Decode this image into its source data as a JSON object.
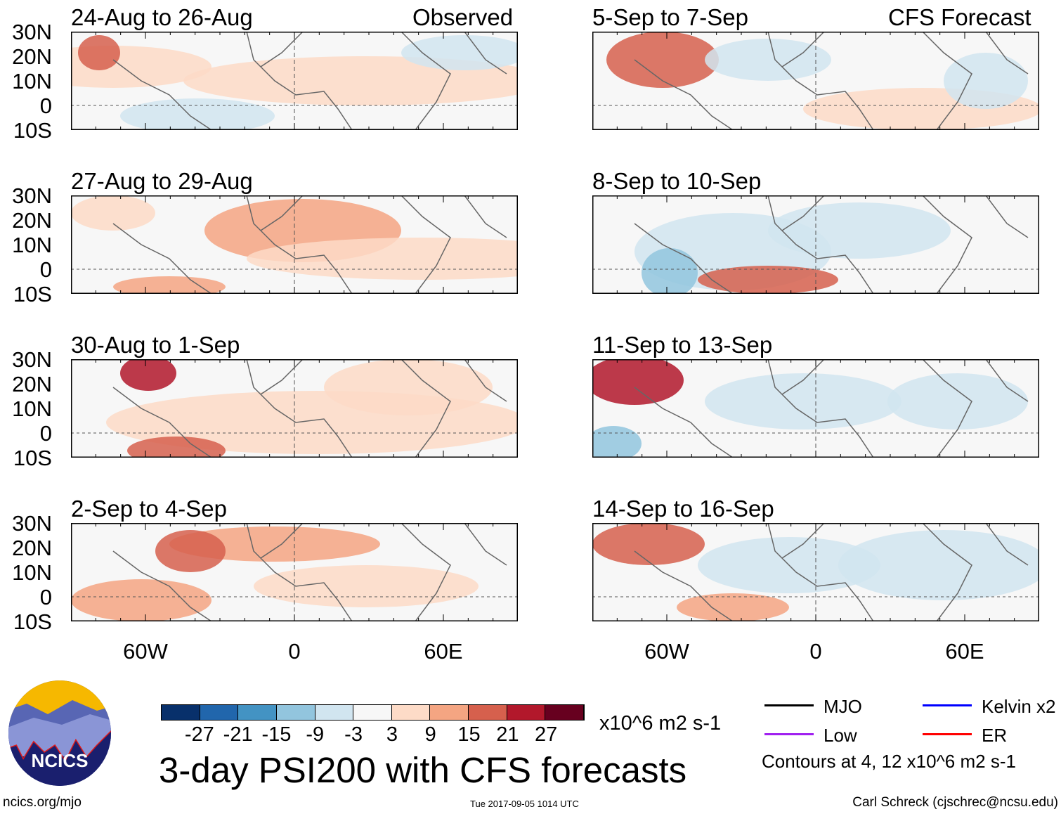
{
  "panels": {
    "left_header": "Observed",
    "right_header": "CFS Forecast",
    "left": [
      "24-Aug to 26-Aug",
      "27-Aug to 29-Aug",
      "30-Aug to 1-Sep",
      "2-Sep to 4-Sep"
    ],
    "right": [
      "5-Sep to 7-Sep",
      "8-Sep to 10-Sep",
      "11-Sep to 13-Sep",
      "14-Sep to 16-Sep"
    ]
  },
  "axes": {
    "lat_labels": [
      "30N",
      "20N",
      "10N",
      "0",
      "10S"
    ],
    "lon_labels": [
      "60W",
      "0",
      "60E"
    ],
    "lat_range": [
      -10,
      30
    ],
    "lon_range": [
      -90,
      90
    ]
  },
  "colorbar": {
    "colors": [
      "#08306b",
      "#2166ac",
      "#4393c3",
      "#92c5de",
      "#d1e5f0",
      "#f7f7f7",
      "#fddbc7",
      "#f4a582",
      "#d6604d",
      "#b2182b",
      "#67001f"
    ],
    "labels": [
      "-27",
      "-21",
      "-15",
      "-9",
      "-3",
      "3",
      "9",
      "15",
      "21",
      "27"
    ],
    "units": "x10^6 m2 s-1"
  },
  "title": "3-day PSI200 with CFS forecasts",
  "legend": {
    "items": [
      {
        "label": "MJO",
        "color": "#000000"
      },
      {
        "label": "Kelvin x2",
        "color": "#0000ff"
      },
      {
        "label": "Low",
        "color": "#a020f0"
      },
      {
        "label": "ER",
        "color": "#ff0000"
      }
    ],
    "contours_note": "Contours at 4, 12 x10^6 m2 s-1"
  },
  "logo": {
    "text": "NCICS"
  },
  "footer": {
    "url": "ncics.org/mjo",
    "timestamp": "Tue 2017-09-05 1014 UTC",
    "author": "Carl Schreck (cjschrec@ncsu.edu)"
  }
}
